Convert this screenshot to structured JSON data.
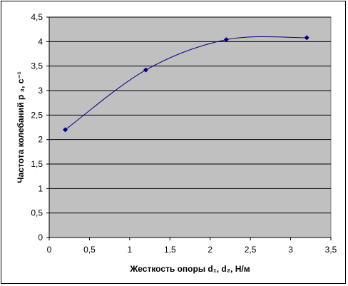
{
  "chart_data": {
    "type": "line",
    "title": "",
    "xlabel": "Жесткость опоры d₁, d₂, Н/м",
    "ylabel": "Частота колебаний р ₃, с⁻¹",
    "xlim": [
      0,
      3.5
    ],
    "ylim": [
      0,
      4.5
    ],
    "x_ticks": [
      "0",
      "0,5",
      "1",
      "1,5",
      "2",
      "2,5",
      "3",
      "3,5"
    ],
    "y_ticks": [
      "0",
      "0,5",
      "1",
      "1,5",
      "2",
      "2,5",
      "3",
      "3,5",
      "4",
      "4,5"
    ],
    "grid": "horizontal",
    "legend": "none",
    "plot_background": "#c0c0c0",
    "series": [
      {
        "color": "#000080",
        "smooth": true,
        "marker": "diamond",
        "x": [
          0.2,
          1.2,
          2.2,
          3.2
        ],
        "y": [
          2.2,
          3.42,
          4.04,
          4.08
        ]
      }
    ]
  }
}
